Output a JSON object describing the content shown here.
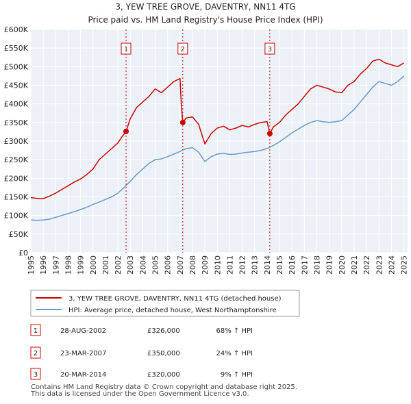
{
  "chart_data": {
    "type": "line",
    "title": "3, YEW TREE GROVE, DAVENTRY, NN11 4TG",
    "subtitle": "Price paid vs. HM Land Registry's House Price Index (HPI)",
    "xlim": [
      1995,
      2025.3
    ],
    "ylim": [
      0,
      600000
    ],
    "x_ticks": [
      1995,
      1996,
      1997,
      1998,
      1999,
      2000,
      2001,
      2002,
      2003,
      2004,
      2005,
      2006,
      2007,
      2008,
      2009,
      2010,
      2011,
      2012,
      2013,
      2014,
      2015,
      2016,
      2017,
      2018,
      2019,
      2020,
      2021,
      2022,
      2023,
      2024,
      2025
    ],
    "y_ticks": [
      {
        "value": 0,
        "label": "£0"
      },
      {
        "value": 50000,
        "label": "£50K"
      },
      {
        "value": 100000,
        "label": "£100K"
      },
      {
        "value": 150000,
        "label": "£150K"
      },
      {
        "value": 200000,
        "label": "£200K"
      },
      {
        "value": 250000,
        "label": "£250K"
      },
      {
        "value": 300000,
        "label": "£300K"
      },
      {
        "value": 350000,
        "label": "£350K"
      },
      {
        "value": 400000,
        "label": "£400K"
      },
      {
        "value": 450000,
        "label": "£450K"
      },
      {
        "value": 500000,
        "label": "£500K"
      },
      {
        "value": 550000,
        "label": "£550K"
      },
      {
        "value": 600000,
        "label": "£600K"
      }
    ],
    "series": [
      {
        "name": "3, YEW TREE GROVE, DAVENTRY, NN11 4TG (detached house)",
        "color": "#cc0000",
        "x": [
          1995,
          1995.5,
          1996,
          1996.5,
          1997,
          1997.5,
          1998,
          1998.5,
          1999,
          1999.5,
          2000,
          2000.5,
          2001,
          2001.5,
          2002,
          2002.3,
          2002.66,
          2003,
          2003.5,
          2004,
          2004.5,
          2005,
          2005.5,
          2006,
          2006.5,
          2007,
          2007.1,
          2007.22,
          2007.5,
          2008,
          2008.5,
          2009,
          2009.5,
          2010,
          2010.5,
          2011,
          2011.5,
          2012,
          2012.5,
          2013,
          2013.5,
          2014,
          2014.22,
          2014.5,
          2015,
          2015.5,
          2016,
          2016.5,
          2017,
          2017.5,
          2018,
          2018.5,
          2019,
          2019.5,
          2020,
          2020.5,
          2021,
          2021.5,
          2022,
          2022.5,
          2023,
          2023.5,
          2024,
          2024.5,
          2025
        ],
        "values": [
          148000,
          146000,
          145000,
          152000,
          160000,
          170000,
          180000,
          190000,
          198000,
          210000,
          225000,
          250000,
          265000,
          280000,
          295000,
          310000,
          326000,
          360000,
          390000,
          405000,
          420000,
          440000,
          430000,
          445000,
          460000,
          468000,
          400000,
          350000,
          362000,
          365000,
          345000,
          292000,
          320000,
          335000,
          340000,
          330000,
          335000,
          342000,
          338000,
          345000,
          350000,
          352000,
          320000,
          338000,
          350000,
          370000,
          385000,
          400000,
          420000,
          440000,
          450000,
          445000,
          440000,
          432000,
          430000,
          450000,
          460000,
          480000,
          495000,
          515000,
          520000,
          510000,
          505000,
          500000,
          510000
        ]
      },
      {
        "name": "HPI: Average price, detached house, West Northamptonshire",
        "color": "#6699cc",
        "x": [
          1995,
          1995.5,
          1996,
          1996.5,
          1997,
          1997.5,
          1998,
          1998.5,
          1999,
          1999.5,
          2000,
          2000.5,
          2001,
          2001.5,
          2002,
          2002.5,
          2003,
          2003.5,
          2004,
          2004.5,
          2005,
          2005.5,
          2006,
          2006.5,
          2007,
          2007.5,
          2008,
          2008.5,
          2009,
          2009.5,
          2010,
          2010.5,
          2011,
          2011.5,
          2012,
          2012.5,
          2013,
          2013.5,
          2014,
          2014.5,
          2015,
          2015.5,
          2016,
          2016.5,
          2017,
          2017.5,
          2018,
          2018.5,
          2019,
          2019.5,
          2020,
          2020.5,
          2021,
          2021.5,
          2022,
          2022.5,
          2023,
          2023.5,
          2024,
          2024.5,
          2025
        ],
        "values": [
          88000,
          87000,
          88000,
          90000,
          95000,
          100000,
          105000,
          110000,
          116000,
          122000,
          130000,
          136000,
          143000,
          150000,
          160000,
          175000,
          192000,
          210000,
          225000,
          240000,
          250000,
          252000,
          258000,
          265000,
          272000,
          280000,
          282000,
          270000,
          245000,
          258000,
          265000,
          267000,
          264000,
          265000,
          268000,
          270000,
          272000,
          275000,
          280000,
          288000,
          298000,
          310000,
          322000,
          332000,
          342000,
          350000,
          355000,
          352000,
          350000,
          352000,
          355000,
          370000,
          385000,
          405000,
          425000,
          445000,
          460000,
          455000,
          450000,
          460000,
          475000
        ]
      }
    ],
    "transactions": [
      {
        "label": "1",
        "date": "28-AUG-2002",
        "x": 2002.66,
        "price": 326000,
        "price_label": "£326,000",
        "hpi": "68% ↑ HPI"
      },
      {
        "label": "2",
        "date": "23-MAR-2007",
        "x": 2007.22,
        "price": 350000,
        "price_label": "£350,000",
        "hpi": "24% ↑ HPI"
      },
      {
        "label": "3",
        "date": "20-MAR-2014",
        "x": 2014.22,
        "price": 320000,
        "price_label": "£320,000",
        "hpi": "9% ↑ HPI"
      }
    ],
    "grid": true,
    "legend_position": "bottom"
  },
  "legend": {
    "property": "3, YEW TREE GROVE, DAVENTRY, NN11 4TG (detached house)",
    "hpi": "HPI: Average price, detached house, West Northamptonshire"
  },
  "footer": {
    "line1": "Contains HM Land Registry data © Crown copyright and database right 2025.",
    "line2": "This data is licensed under the Open Government Licence v3.0."
  },
  "colors": {
    "property": "#cc0000",
    "hpi": "#6699cc",
    "plot_bg": "#ecf1f8",
    "grid": "#ffffff",
    "vline": "#cc0000"
  }
}
